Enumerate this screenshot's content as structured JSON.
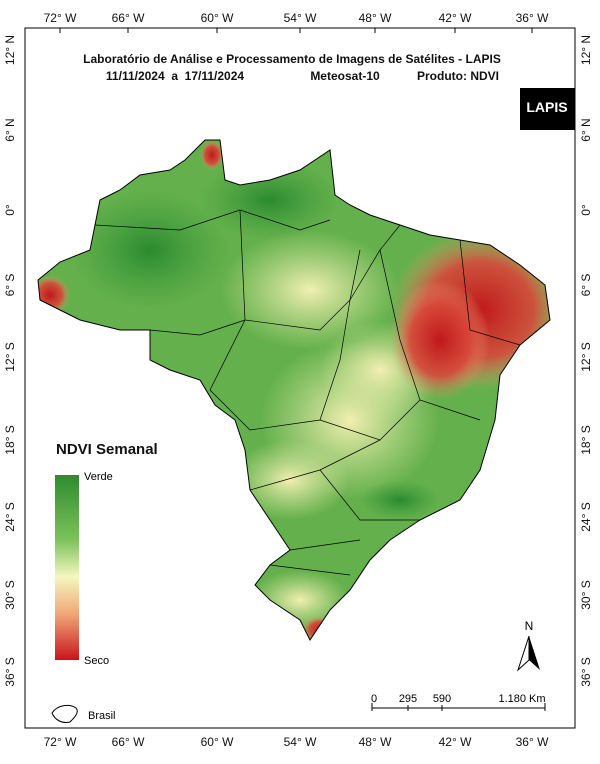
{
  "header": {
    "title": "Laboratório de Análise e Processamento de Imagens de Satélites - LAPIS",
    "dates": "11/11/2024  a  17/11/2024",
    "satellite": "Meteosat-10",
    "product": "Produto: NDVI"
  },
  "logo": "LAPIS",
  "axes": {
    "longitudes": [
      "72° W",
      "66° W",
      "60° W",
      "54° W",
      "48° W",
      "42° W",
      "36° W"
    ],
    "latitudes": [
      "12° N",
      "6° N",
      "0°",
      "6° S",
      "12° S",
      "18° S",
      "24° S",
      "30° S",
      "36° S"
    ]
  },
  "legend": {
    "title": "NDVI Semanal",
    "high": "Verde",
    "low": "Seco"
  },
  "scale_bar": {
    "labels": [
      "0",
      "295",
      "590",
      "1.180 Km"
    ]
  },
  "north": "N",
  "inset": "Brasil"
}
